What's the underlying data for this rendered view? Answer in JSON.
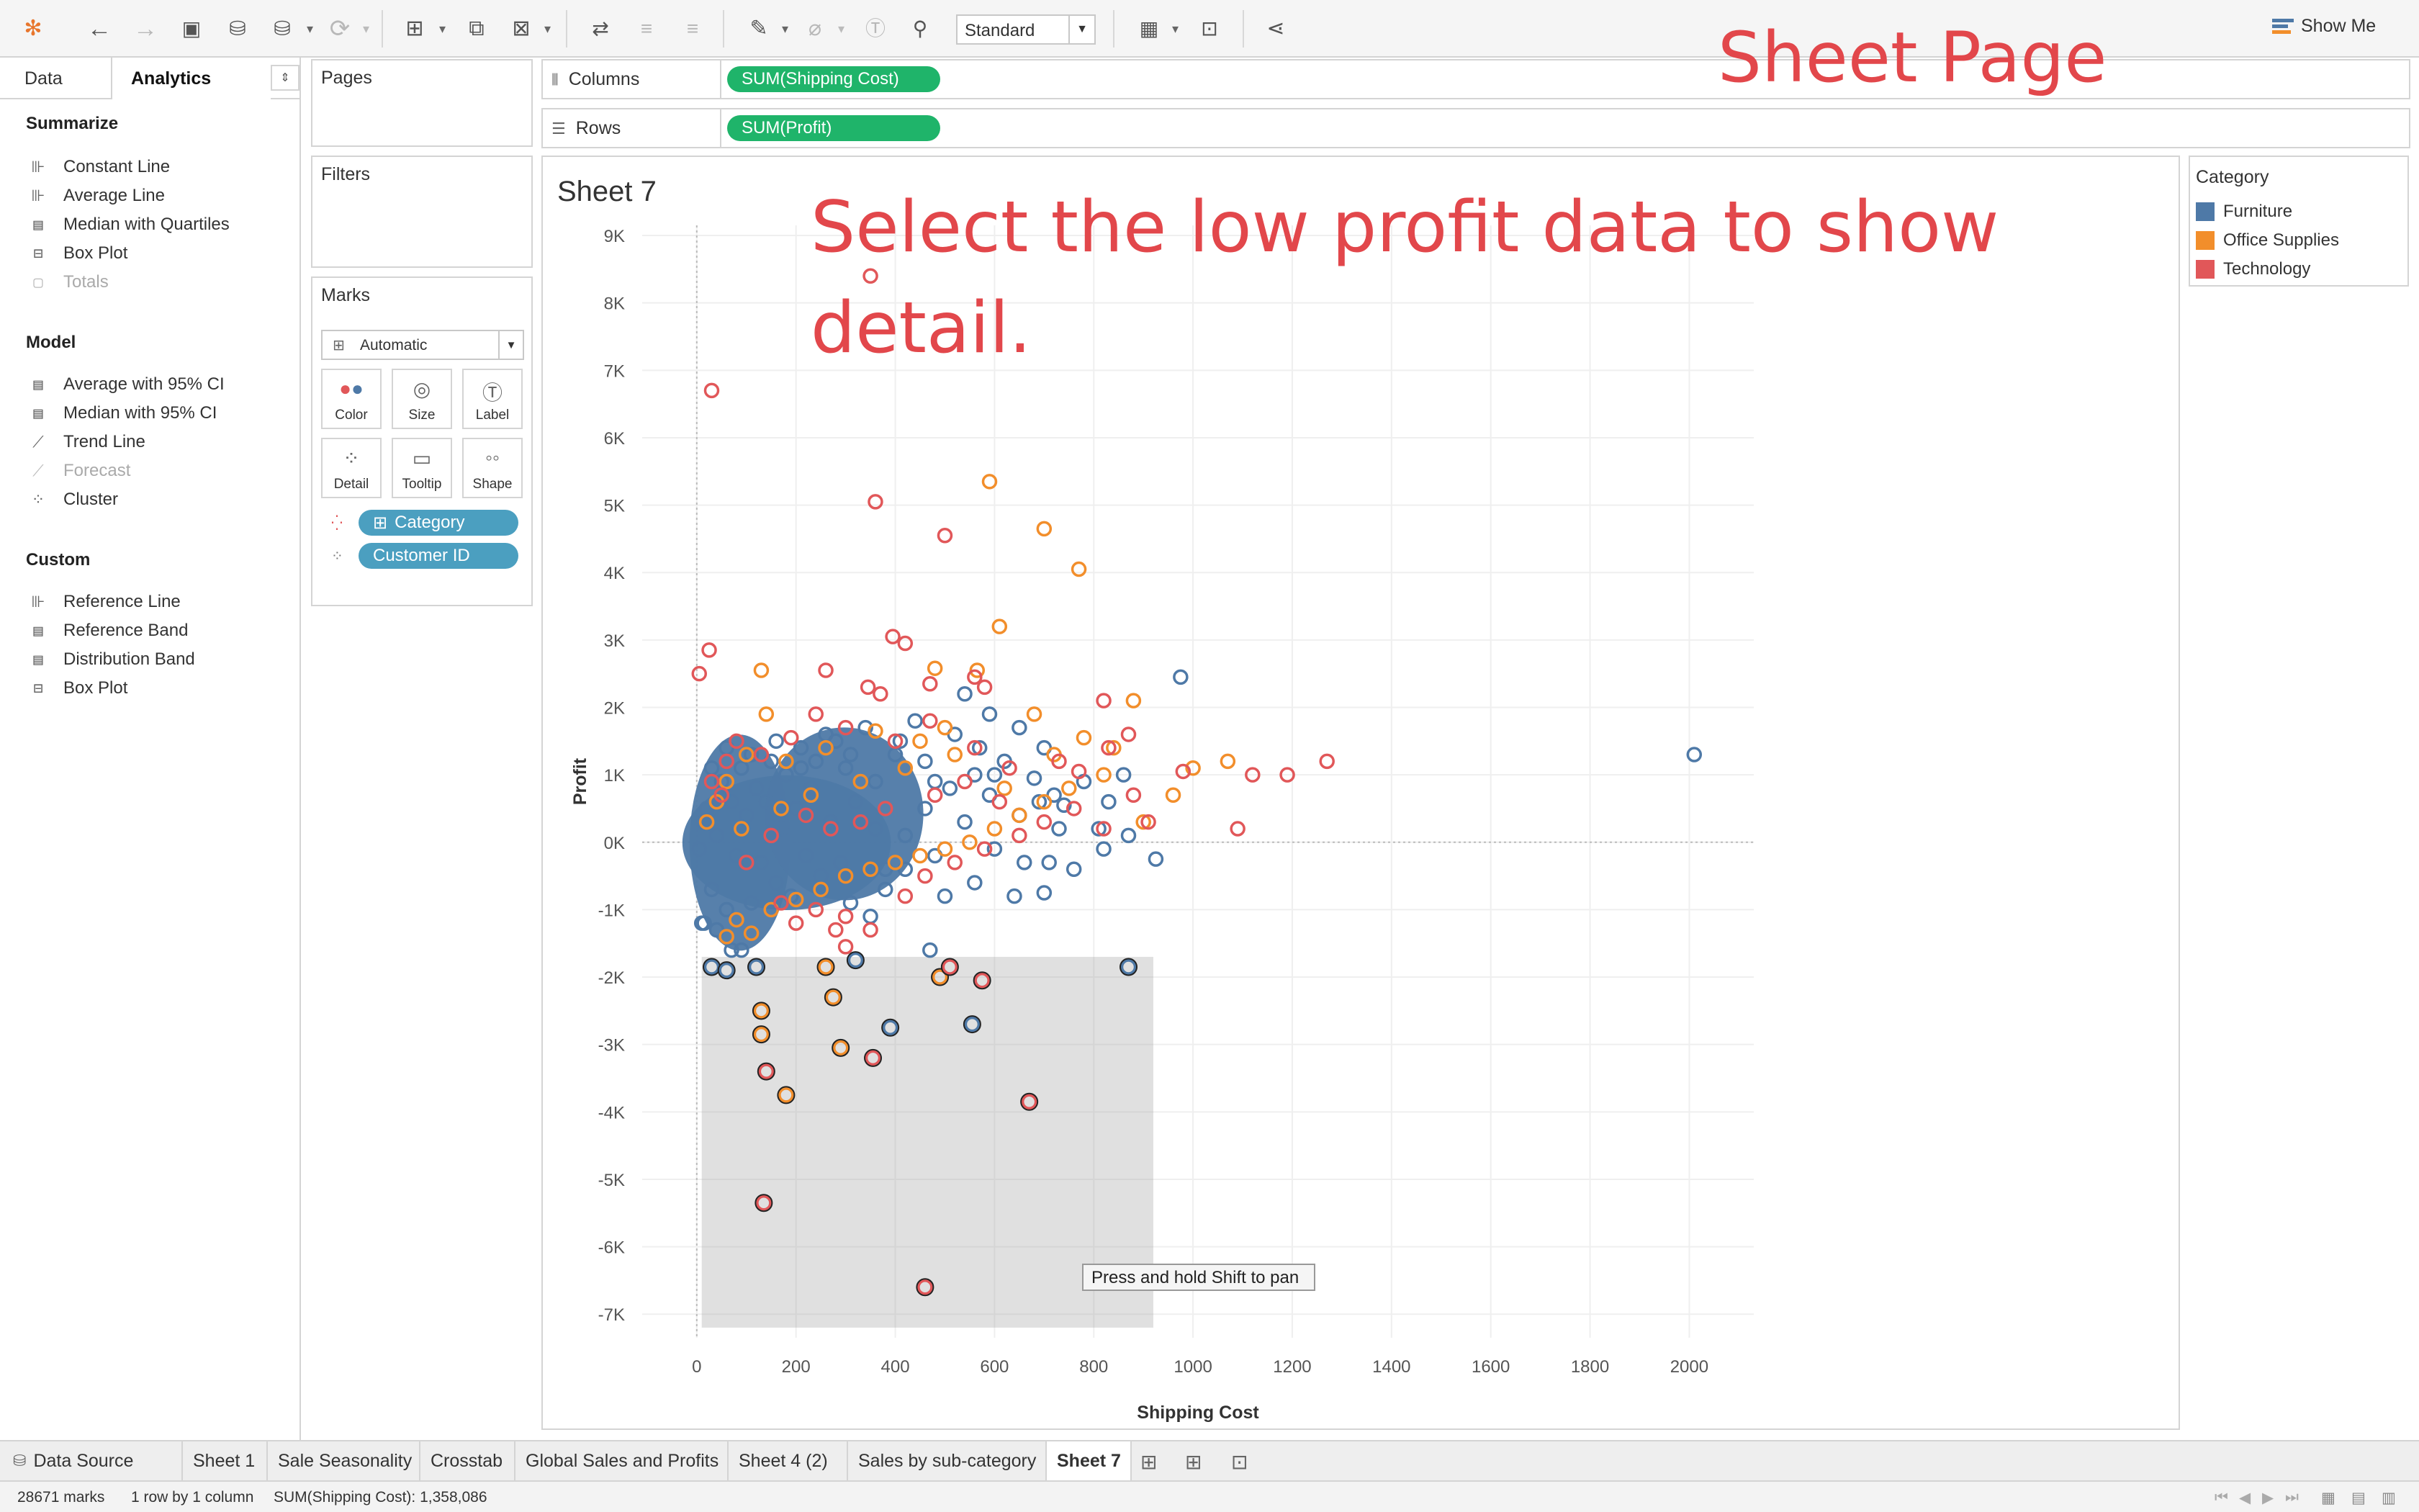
{
  "annotations": {
    "title": "Sheet Page",
    "hint": "Select the low profit data to show detail."
  },
  "toolbar": {
    "fit_mode": "Standard",
    "show_me": "Show Me",
    "icons": [
      "tableau-logo-icon",
      "undo-icon",
      "redo-icon",
      "save-icon",
      "new-data-source-icon",
      "pause-updates-icon",
      "refresh-icon",
      "new-worksheet-icon",
      "duplicate-icon",
      "clear-sheet-icon",
      "swap-rows-columns-icon",
      "sort-ascending-icon",
      "sort-descending-icon",
      "highlight-icon",
      "group-icon",
      "show-mark-labels-icon",
      "fix-axes-icon",
      "show-cards-icon",
      "presentation-mode-icon",
      "share-icon"
    ]
  },
  "left_pane": {
    "tabs": [
      "Data",
      "Analytics"
    ],
    "sections": [
      {
        "title": "Summarize",
        "items": [
          {
            "label": "Constant Line",
            "icon": "constant-line-icon",
            "enabled": true
          },
          {
            "label": "Average Line",
            "icon": "average-line-icon",
            "enabled": true
          },
          {
            "label": "Median with Quartiles",
            "icon": "median-quartiles-icon",
            "enabled": true
          },
          {
            "label": "Box Plot",
            "icon": "box-plot-icon",
            "enabled": true
          },
          {
            "label": "Totals",
            "icon": "totals-icon",
            "enabled": false
          }
        ]
      },
      {
        "title": "Model",
        "items": [
          {
            "label": "Average with 95% CI",
            "icon": "average-ci-icon",
            "enabled": true
          },
          {
            "label": "Median with 95% CI",
            "icon": "median-ci-icon",
            "enabled": true
          },
          {
            "label": "Trend Line",
            "icon": "trend-line-icon",
            "enabled": true
          },
          {
            "label": "Forecast",
            "icon": "forecast-icon",
            "enabled": false
          },
          {
            "label": "Cluster",
            "icon": "cluster-icon",
            "enabled": true
          }
        ]
      },
      {
        "title": "Custom",
        "items": [
          {
            "label": "Reference Line",
            "icon": "reference-line-icon",
            "enabled": true
          },
          {
            "label": "Reference Band",
            "icon": "reference-band-icon",
            "enabled": true
          },
          {
            "label": "Distribution Band",
            "icon": "distribution-band-icon",
            "enabled": true
          },
          {
            "label": "Box Plot",
            "icon": "box-plot-icon",
            "enabled": true
          }
        ]
      }
    ]
  },
  "cards": {
    "pages": "Pages",
    "filters": "Filters",
    "marks": {
      "title": "Marks",
      "mark_type": "Automatic",
      "buttons": [
        "Color",
        "Size",
        "Label",
        "Detail",
        "Tooltip",
        "Shape"
      ],
      "fields": [
        {
          "label": "Category",
          "encoding": "color"
        },
        {
          "label": "Customer ID",
          "encoding": "detail"
        }
      ]
    }
  },
  "shelves": {
    "columns_label": "Columns",
    "columns_pill": "SUM(Shipping Cost)",
    "rows_label": "Rows",
    "rows_pill": "SUM(Profit)"
  },
  "view": {
    "sheet_title": "Sheet 7",
    "tooltip": "Press and hold Shift to pan",
    "selection_box": {
      "x_range": [
        10,
        920
      ],
      "y_range": [
        -7200,
        -1700
      ]
    }
  },
  "legend": {
    "title": "Category",
    "items": [
      {
        "label": "Furniture",
        "color": "#4e79a7"
      },
      {
        "label": "Office Supplies",
        "color": "#f28e2b"
      },
      {
        "label": "Technology",
        "color": "#e15759"
      }
    ]
  },
  "chart_data": {
    "type": "scatter",
    "xlabel": "Shipping Cost",
    "ylabel": "Profit",
    "xlim": [
      -110,
      2130
    ],
    "ylim": [
      -7350,
      9150
    ],
    "x_ticks": [
      0,
      200,
      400,
      600,
      800,
      1000,
      1200,
      1400,
      1600,
      1800,
      2000
    ],
    "x_tick_labels": [
      "0",
      "200",
      "400",
      "600",
      "800",
      "1000",
      "1200",
      "1400",
      "1600",
      "1800",
      "2000"
    ],
    "y_ticks": [
      9000,
      8000,
      7000,
      6000,
      5000,
      4000,
      3000,
      2000,
      1000,
      0,
      -1000,
      -2000,
      -3000,
      -4000,
      -5000,
      -6000,
      -7000
    ],
    "y_tick_labels": [
      "9K",
      "8K",
      "7K",
      "6K",
      "5K",
      "4K",
      "3K",
      "2K",
      "1K",
      "0K",
      "-1K",
      "-2K",
      "-3K",
      "-4K",
      "-5K",
      "-6K",
      "-7K"
    ],
    "grid": true,
    "legend_placement": "right",
    "dense_cluster": {
      "series": "Furniture",
      "x_range": [
        0,
        420
      ],
      "y_range": [
        -1100,
        1300
      ]
    },
    "series": [
      {
        "name": "Furniture",
        "color": "#4e79a7",
        "points": [
          [
            2010,
            1300
          ],
          [
            975,
            2450
          ],
          [
            925,
            -250
          ],
          [
            870,
            100
          ],
          [
            860,
            1000
          ],
          [
            830,
            600
          ],
          [
            810,
            200
          ],
          [
            740,
            550
          ],
          [
            720,
            700
          ],
          [
            710,
            -300
          ],
          [
            680,
            950
          ],
          [
            650,
            400
          ],
          [
            620,
            1200
          ],
          [
            600,
            -100
          ],
          [
            590,
            700
          ],
          [
            570,
            1400
          ],
          [
            560,
            -600
          ],
          [
            540,
            2200
          ],
          [
            520,
            1600
          ],
          [
            500,
            -800
          ],
          [
            480,
            900
          ],
          [
            460,
            500
          ],
          [
            440,
            1800
          ],
          [
            420,
            -400
          ],
          [
            400,
            1300
          ],
          [
            380,
            -700
          ],
          [
            360,
            200
          ],
          [
            340,
            1700
          ],
          [
            320,
            600
          ],
          [
            310,
            -900
          ],
          [
            300,
            1100
          ],
          [
            290,
            -300
          ],
          [
            280,
            1500
          ],
          [
            270,
            300
          ],
          [
            250,
            -500
          ],
          [
            240,
            1200
          ],
          [
            230,
            800
          ],
          [
            220,
            -200
          ],
          [
            210,
            1400
          ],
          [
            200,
            500
          ],
          [
            190,
            -800
          ],
          [
            180,
            1000
          ],
          [
            170,
            200
          ],
          [
            160,
            -600
          ],
          [
            150,
            1200
          ],
          [
            140,
            600
          ],
          [
            130,
            -300
          ],
          [
            120,
            800
          ],
          [
            110,
            -900
          ],
          [
            100,
            400
          ],
          [
            90,
            1100
          ],
          [
            80,
            -200
          ],
          [
            70,
            600
          ],
          [
            60,
            -1000
          ],
          [
            50,
            900
          ],
          [
            40,
            100
          ],
          [
            30,
            -700
          ],
          [
            20,
            500
          ],
          [
            15,
            -1200
          ],
          [
            870,
            -1850
          ],
          [
            555,
            -2700
          ],
          [
            390,
            -2750
          ],
          [
            320,
            -1750
          ],
          [
            120,
            -1850
          ],
          [
            90,
            -1600
          ],
          [
            70,
            -1600
          ],
          [
            30,
            -1850
          ],
          [
            60,
            -1900
          ],
          [
            10,
            -1200
          ],
          [
            40,
            -1300
          ],
          [
            470,
            -1600
          ],
          [
            640,
            -800
          ],
          [
            700,
            -750
          ],
          [
            760,
            -400
          ],
          [
            380,
            -400
          ],
          [
            420,
            100
          ],
          [
            480,
            -200
          ],
          [
            540,
            300
          ],
          [
            600,
            1000
          ],
          [
            660,
            -300
          ],
          [
            690,
            600
          ],
          [
            730,
            200
          ],
          [
            780,
            900
          ],
          [
            820,
            -100
          ],
          [
            700,
            1400
          ],
          [
            650,
            1700
          ],
          [
            590,
            1900
          ],
          [
            560,
            1000
          ],
          [
            510,
            800
          ],
          [
            460,
            1200
          ],
          [
            410,
            1500
          ],
          [
            360,
            900
          ],
          [
            310,
            1300
          ],
          [
            260,
            1600
          ],
          [
            210,
            1100
          ],
          [
            160,
            1500
          ],
          [
            110,
            1300
          ],
          [
            60,
            1400
          ],
          [
            30,
            1100
          ],
          [
            15,
            300
          ],
          [
            5,
            -100
          ],
          [
            350,
            -1100
          ]
        ]
      },
      {
        "name": "Office Supplies",
        "color": "#f28e2b",
        "points": [
          [
            590,
            5350
          ],
          [
            700,
            4650
          ],
          [
            770,
            4050
          ],
          [
            610,
            3200
          ],
          [
            565,
            2550
          ],
          [
            480,
            2580
          ],
          [
            880,
            2100
          ],
          [
            130,
            2550
          ],
          [
            140,
            1900
          ],
          [
            1000,
            1100
          ],
          [
            1070,
            1200
          ],
          [
            960,
            700
          ],
          [
            780,
            1550
          ],
          [
            680,
            1900
          ],
          [
            500,
            1700
          ],
          [
            450,
            1500
          ],
          [
            360,
            1650
          ],
          [
            260,
            1400
          ],
          [
            180,
            1200
          ],
          [
            100,
            1300
          ],
          [
            60,
            900
          ],
          [
            40,
            600
          ],
          [
            20,
            300
          ],
          [
            110,
            -1350
          ],
          [
            130,
            -2500
          ],
          [
            130,
            -2850
          ],
          [
            180,
            -3750
          ],
          [
            290,
            -3050
          ],
          [
            275,
            -2300
          ],
          [
            260,
            -1850
          ],
          [
            490,
            -2000
          ],
          [
            60,
            -1400
          ],
          [
            80,
            -1150
          ],
          [
            150,
            -1000
          ],
          [
            200,
            -850
          ],
          [
            250,
            -700
          ],
          [
            300,
            -500
          ],
          [
            350,
            -400
          ],
          [
            400,
            -300
          ],
          [
            450,
            -200
          ],
          [
            500,
            -100
          ],
          [
            550,
            0
          ],
          [
            600,
            200
          ],
          [
            650,
            400
          ],
          [
            700,
            600
          ],
          [
            750,
            800
          ],
          [
            820,
            1000
          ],
          [
            900,
            300
          ],
          [
            330,
            900
          ],
          [
            230,
            700
          ],
          [
            170,
            500
          ],
          [
            90,
            200
          ],
          [
            420,
            1100
          ],
          [
            520,
            1300
          ],
          [
            620,
            800
          ],
          [
            720,
            1300
          ],
          [
            840,
            1400
          ]
        ]
      },
      {
        "name": "Technology",
        "color": "#e15759",
        "points": [
          [
            30,
            6700
          ],
          [
            350,
            8400
          ],
          [
            360,
            5050
          ],
          [
            500,
            4550
          ],
          [
            395,
            3050
          ],
          [
            420,
            2950
          ],
          [
            25,
            2850
          ],
          [
            5,
            2500
          ],
          [
            260,
            2550
          ],
          [
            345,
            2300
          ],
          [
            370,
            2200
          ],
          [
            470,
            2350
          ],
          [
            560,
            2450
          ],
          [
            580,
            2300
          ],
          [
            1270,
            1200
          ],
          [
            1190,
            1000
          ],
          [
            1120,
            1000
          ],
          [
            1090,
            200
          ],
          [
            980,
            1050
          ],
          [
            910,
            300
          ],
          [
            830,
            1400
          ],
          [
            770,
            1050
          ],
          [
            870,
            1600
          ],
          [
            820,
            2100
          ],
          [
            730,
            1200
          ],
          [
            630,
            1100
          ],
          [
            560,
            1400
          ],
          [
            470,
            1800
          ],
          [
            400,
            1500
          ],
          [
            300,
            1700
          ],
          [
            240,
            1900
          ],
          [
            190,
            1550
          ],
          [
            130,
            1300
          ],
          [
            80,
            1500
          ],
          [
            60,
            1200
          ],
          [
            30,
            900
          ],
          [
            300,
            -1550
          ],
          [
            510,
            -1850
          ],
          [
            575,
            -2050
          ],
          [
            355,
            -3200
          ],
          [
            140,
            -3400
          ],
          [
            135,
            -5350
          ],
          [
            670,
            -3850
          ],
          [
            460,
            -6600
          ],
          [
            350,
            -1300
          ],
          [
            300,
            -1100
          ],
          [
            280,
            -1300
          ],
          [
            240,
            -1000
          ],
          [
            200,
            -1200
          ],
          [
            170,
            -900
          ],
          [
            420,
            -800
          ],
          [
            460,
            -500
          ],
          [
            520,
            -300
          ],
          [
            580,
            -100
          ],
          [
            650,
            100
          ],
          [
            700,
            300
          ],
          [
            760,
            500
          ],
          [
            820,
            200
          ],
          [
            880,
            700
          ],
          [
            610,
            600
          ],
          [
            540,
            900
          ],
          [
            480,
            700
          ],
          [
            380,
            500
          ],
          [
            330,
            300
          ],
          [
            270,
            200
          ],
          [
            220,
            400
          ],
          [
            150,
            100
          ],
          [
            100,
            -300
          ],
          [
            50,
            700
          ]
        ]
      }
    ]
  },
  "sheet_tabs": [
    "Data Source",
    "Sheet 1",
    "Sale Seasonality",
    "Crosstab",
    "Global Sales and Profits",
    "Sheet 4 (2)",
    "Sales by sub-category",
    "Sheet 7"
  ],
  "active_tab": "Sheet 7",
  "status": {
    "marks": "28671 marks",
    "dims": "1 row by 1 column",
    "sum": "SUM(Shipping Cost): 1,358,086"
  }
}
